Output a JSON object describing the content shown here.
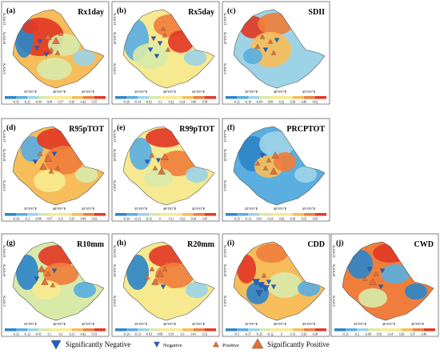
{
  "panels": [
    {
      "id": "a",
      "letter": "(a)",
      "title": "Rx1day",
      "legend": [
        "-0.35",
        "-0.22",
        "-0.09",
        "0.04",
        "0.17",
        "0.29",
        "0.42",
        "0.55"
      ]
    },
    {
      "id": "b",
      "letter": "(b)",
      "title": "Rx5day",
      "legend": [
        "-0.26",
        "-0.14",
        "-0.02",
        "0.1",
        "0.22",
        "0.34",
        "0.46",
        "0.58"
      ]
    },
    {
      "id": "c",
      "letter": "(c)",
      "title": "SDII",
      "legend": [
        "-0.31",
        "-0.18",
        "-0.04",
        "0.09",
        "0.22",
        "0.36",
        "0.49",
        "0.62"
      ]
    },
    {
      "id": "d",
      "letter": "(d)",
      "title": "R95pTOT",
      "legend": [
        "-0.34",
        "-0.2",
        "-0.06",
        "0.07",
        "0.21",
        "0.35",
        "0.49",
        "0.62"
      ]
    },
    {
      "id": "e",
      "letter": "(e)",
      "title": "R99pTOT",
      "legend": [
        "-0.34",
        "-0.23",
        "-0.12",
        "0",
        "0.11",
        "0.22",
        "0.34",
        "0.45"
      ]
    },
    {
      "id": "f",
      "letter": "(f)",
      "title": "PRCPTOT",
      "legend": [
        "-0.25",
        "-0.12",
        "0.01",
        "0.14",
        "0.26",
        "0.39",
        "0.52",
        "0.65"
      ]
    },
    {
      "id": "g",
      "letter": "(g)",
      "title": "R10mm",
      "legend": [
        "-0.23",
        "-0.12",
        "-0.01",
        "0.1",
        "0.2",
        "0.31",
        "0.42",
        "0.53"
      ]
    },
    {
      "id": "h",
      "letter": "(h)",
      "title": "R20mm",
      "legend": [
        "-0.24",
        "-0.13",
        "-0.03",
        "0.08",
        "0.19",
        "0.3",
        "0.41",
        "0.52"
      ]
    },
    {
      "id": "i",
      "letter": "(i)",
      "title": "CDD",
      "legend": [
        "-0.5",
        "-0.37",
        "-0.25",
        "-0.12",
        "0",
        "0.13",
        "0.26",
        "0.38"
      ]
    },
    {
      "id": "j",
      "letter": "(j)",
      "title": "CWD",
      "legend": [
        "-0.31",
        "-0.2",
        "-0.08",
        "0.03",
        "0.14",
        "0.26",
        "0.37",
        "0.48"
      ]
    }
  ],
  "axes": {
    "lon": [
      "35°0'0\"E",
      "40°0'0\"E",
      "45°0'0\"E"
    ],
    "lat": [
      "15°0'0\"N",
      "10°0'0\"N",
      "5°0'0\"N"
    ]
  },
  "legend_items": [
    {
      "label": "Significantly Negative",
      "icon": "large-triangle-down-icon"
    },
    {
      "label": "Negative",
      "icon": "small-triangle-down-icon"
    },
    {
      "label": "Positive",
      "icon": "small-triangle-up-icon"
    },
    {
      "label": "Significantly Positive",
      "icon": "large-triangle-up-icon"
    }
  ],
  "colors": {
    "ramp": [
      "#2e86c8",
      "#5aaee0",
      "#9dd3e6",
      "#d8e9a8",
      "#f7e98f",
      "#f6bd5a",
      "#ef7e3c",
      "#e23a26"
    ],
    "neg_marker": "#1f5fd0",
    "pos_marker": "#e0703a"
  }
}
